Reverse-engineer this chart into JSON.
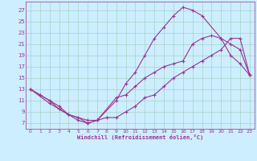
{
  "xlabel": "Windchill (Refroidissement éolien,°C)",
  "bg_color": "#cceeff",
  "line_color": "#993399",
  "grid_color": "#99ccbb",
  "xlim_min": -0.5,
  "xlim_max": 23.5,
  "ylim_min": 6.0,
  "ylim_max": 28.5,
  "xticks": [
    0,
    1,
    2,
    3,
    4,
    5,
    6,
    7,
    8,
    9,
    10,
    11,
    12,
    13,
    14,
    15,
    16,
    17,
    18,
    19,
    20,
    21,
    22,
    23
  ],
  "yticks": [
    7,
    9,
    11,
    13,
    15,
    17,
    19,
    21,
    23,
    25,
    27
  ],
  "line1_x": [
    0,
    1,
    2,
    3,
    4,
    5,
    6,
    7,
    9,
    10,
    11,
    12,
    13,
    14,
    15,
    16,
    17,
    18,
    19,
    20,
    21,
    22,
    23
  ],
  "line1_y": [
    13,
    12,
    11,
    9.5,
    8.5,
    8,
    7.5,
    7.5,
    11.5,
    12,
    13.5,
    15,
    16,
    17,
    17.5,
    18,
    21,
    22,
    22.5,
    22,
    21,
    20,
    15.5
  ],
  "line2_x": [
    0,
    2,
    3,
    4,
    5,
    6,
    7,
    9,
    10,
    11,
    12,
    13,
    14,
    15,
    16,
    17,
    18,
    20,
    21,
    22,
    23
  ],
  "line2_y": [
    13,
    10.5,
    9.5,
    8.5,
    7.5,
    7,
    7.5,
    11,
    14,
    16,
    19,
    22,
    24,
    26,
    27.5,
    27,
    26,
    22,
    19,
    17.5,
    15.5
  ],
  "line3_x": [
    0,
    1,
    2,
    3,
    4,
    5,
    6,
    7,
    8,
    9,
    10,
    11,
    12,
    13,
    14,
    15,
    16,
    17,
    18,
    19,
    20,
    21,
    22,
    23
  ],
  "line3_y": [
    13,
    12,
    11,
    10,
    8.5,
    8,
    7,
    7.5,
    8,
    8,
    9,
    10,
    11.5,
    12,
    13.5,
    15,
    16,
    17,
    18,
    19,
    20,
    22,
    22,
    15.5
  ]
}
